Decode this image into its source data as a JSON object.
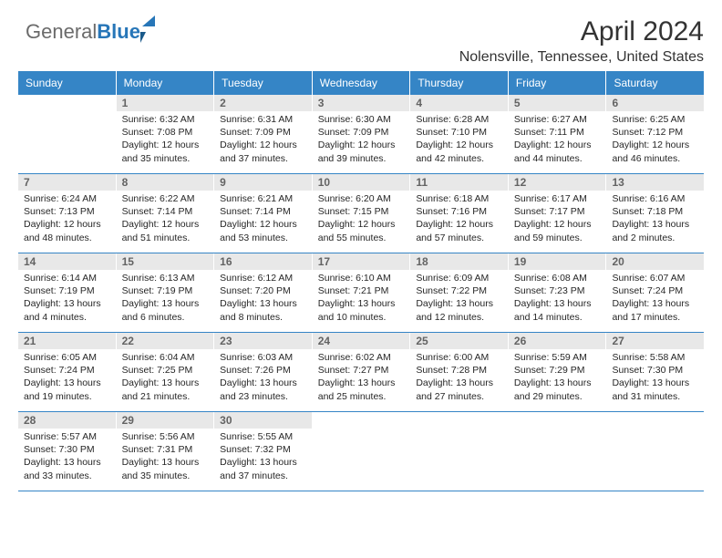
{
  "brand": {
    "part1": "General",
    "part2": "Blue"
  },
  "title": "April 2024",
  "location": "Nolensville, Tennessee, United States",
  "accent_color": "#3585c6",
  "daynum_bg": "#e8e8e8",
  "weekday_labels": [
    "Sunday",
    "Monday",
    "Tuesday",
    "Wednesday",
    "Thursday",
    "Friday",
    "Saturday"
  ],
  "weeks": [
    [
      null,
      {
        "n": "1",
        "sr": "Sunrise: 6:32 AM",
        "ss": "Sunset: 7:08 PM",
        "dl": "Daylight: 12 hours and 35 minutes."
      },
      {
        "n": "2",
        "sr": "Sunrise: 6:31 AM",
        "ss": "Sunset: 7:09 PM",
        "dl": "Daylight: 12 hours and 37 minutes."
      },
      {
        "n": "3",
        "sr": "Sunrise: 6:30 AM",
        "ss": "Sunset: 7:09 PM",
        "dl": "Daylight: 12 hours and 39 minutes."
      },
      {
        "n": "4",
        "sr": "Sunrise: 6:28 AM",
        "ss": "Sunset: 7:10 PM",
        "dl": "Daylight: 12 hours and 42 minutes."
      },
      {
        "n": "5",
        "sr": "Sunrise: 6:27 AM",
        "ss": "Sunset: 7:11 PM",
        "dl": "Daylight: 12 hours and 44 minutes."
      },
      {
        "n": "6",
        "sr": "Sunrise: 6:25 AM",
        "ss": "Sunset: 7:12 PM",
        "dl": "Daylight: 12 hours and 46 minutes."
      }
    ],
    [
      {
        "n": "7",
        "sr": "Sunrise: 6:24 AM",
        "ss": "Sunset: 7:13 PM",
        "dl": "Daylight: 12 hours and 48 minutes."
      },
      {
        "n": "8",
        "sr": "Sunrise: 6:22 AM",
        "ss": "Sunset: 7:14 PM",
        "dl": "Daylight: 12 hours and 51 minutes."
      },
      {
        "n": "9",
        "sr": "Sunrise: 6:21 AM",
        "ss": "Sunset: 7:14 PM",
        "dl": "Daylight: 12 hours and 53 minutes."
      },
      {
        "n": "10",
        "sr": "Sunrise: 6:20 AM",
        "ss": "Sunset: 7:15 PM",
        "dl": "Daylight: 12 hours and 55 minutes."
      },
      {
        "n": "11",
        "sr": "Sunrise: 6:18 AM",
        "ss": "Sunset: 7:16 PM",
        "dl": "Daylight: 12 hours and 57 minutes."
      },
      {
        "n": "12",
        "sr": "Sunrise: 6:17 AM",
        "ss": "Sunset: 7:17 PM",
        "dl": "Daylight: 12 hours and 59 minutes."
      },
      {
        "n": "13",
        "sr": "Sunrise: 6:16 AM",
        "ss": "Sunset: 7:18 PM",
        "dl": "Daylight: 13 hours and 2 minutes."
      }
    ],
    [
      {
        "n": "14",
        "sr": "Sunrise: 6:14 AM",
        "ss": "Sunset: 7:19 PM",
        "dl": "Daylight: 13 hours and 4 minutes."
      },
      {
        "n": "15",
        "sr": "Sunrise: 6:13 AM",
        "ss": "Sunset: 7:19 PM",
        "dl": "Daylight: 13 hours and 6 minutes."
      },
      {
        "n": "16",
        "sr": "Sunrise: 6:12 AM",
        "ss": "Sunset: 7:20 PM",
        "dl": "Daylight: 13 hours and 8 minutes."
      },
      {
        "n": "17",
        "sr": "Sunrise: 6:10 AM",
        "ss": "Sunset: 7:21 PM",
        "dl": "Daylight: 13 hours and 10 minutes."
      },
      {
        "n": "18",
        "sr": "Sunrise: 6:09 AM",
        "ss": "Sunset: 7:22 PM",
        "dl": "Daylight: 13 hours and 12 minutes."
      },
      {
        "n": "19",
        "sr": "Sunrise: 6:08 AM",
        "ss": "Sunset: 7:23 PM",
        "dl": "Daylight: 13 hours and 14 minutes."
      },
      {
        "n": "20",
        "sr": "Sunrise: 6:07 AM",
        "ss": "Sunset: 7:24 PM",
        "dl": "Daylight: 13 hours and 17 minutes."
      }
    ],
    [
      {
        "n": "21",
        "sr": "Sunrise: 6:05 AM",
        "ss": "Sunset: 7:24 PM",
        "dl": "Daylight: 13 hours and 19 minutes."
      },
      {
        "n": "22",
        "sr": "Sunrise: 6:04 AM",
        "ss": "Sunset: 7:25 PM",
        "dl": "Daylight: 13 hours and 21 minutes."
      },
      {
        "n": "23",
        "sr": "Sunrise: 6:03 AM",
        "ss": "Sunset: 7:26 PM",
        "dl": "Daylight: 13 hours and 23 minutes."
      },
      {
        "n": "24",
        "sr": "Sunrise: 6:02 AM",
        "ss": "Sunset: 7:27 PM",
        "dl": "Daylight: 13 hours and 25 minutes."
      },
      {
        "n": "25",
        "sr": "Sunrise: 6:00 AM",
        "ss": "Sunset: 7:28 PM",
        "dl": "Daylight: 13 hours and 27 minutes."
      },
      {
        "n": "26",
        "sr": "Sunrise: 5:59 AM",
        "ss": "Sunset: 7:29 PM",
        "dl": "Daylight: 13 hours and 29 minutes."
      },
      {
        "n": "27",
        "sr": "Sunrise: 5:58 AM",
        "ss": "Sunset: 7:30 PM",
        "dl": "Daylight: 13 hours and 31 minutes."
      }
    ],
    [
      {
        "n": "28",
        "sr": "Sunrise: 5:57 AM",
        "ss": "Sunset: 7:30 PM",
        "dl": "Daylight: 13 hours and 33 minutes."
      },
      {
        "n": "29",
        "sr": "Sunrise: 5:56 AM",
        "ss": "Sunset: 7:31 PM",
        "dl": "Daylight: 13 hours and 35 minutes."
      },
      {
        "n": "30",
        "sr": "Sunrise: 5:55 AM",
        "ss": "Sunset: 7:32 PM",
        "dl": "Daylight: 13 hours and 37 minutes."
      },
      null,
      null,
      null,
      null
    ]
  ]
}
